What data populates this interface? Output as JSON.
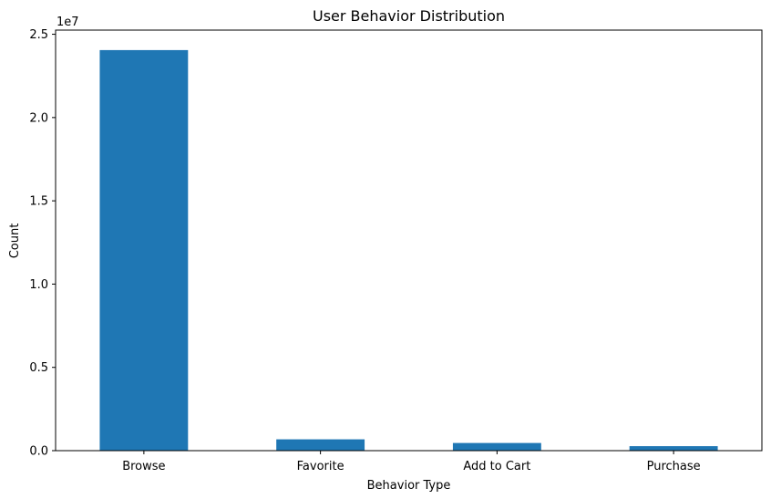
{
  "chart_data": {
    "type": "bar",
    "title": "User Behavior Distribution",
    "xlabel": "Behavior Type",
    "ylabel": "Count",
    "categories": [
      "Browse",
      "Favorite",
      "Add to Cart",
      "Purchase"
    ],
    "values": [
      24050000,
      680000,
      460000,
      270000
    ],
    "ylim": [
      0,
      25250000
    ],
    "yticks": [
      0,
      5000000,
      10000000,
      15000000,
      20000000,
      25000000
    ],
    "ytick_labels": [
      "0.0",
      "0.5",
      "1.0",
      "1.5",
      "2.0",
      "2.5"
    ],
    "offset_label": "1e7",
    "bar_color": "#1f77b4",
    "grid": false,
    "legend": "none"
  }
}
